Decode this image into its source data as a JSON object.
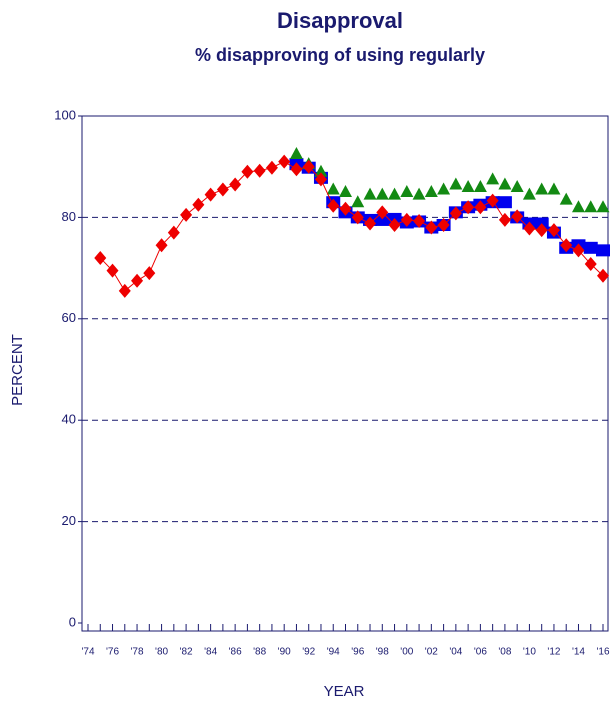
{
  "chart_data": {
    "type": "line",
    "title": "Disapproval",
    "subtitle": "% disapproving of using regularly",
    "y_label": "PERCENT",
    "x_label": "YEAR",
    "categories": [
      "'74",
      null,
      "'76",
      null,
      "'78",
      null,
      "'80",
      null,
      "'82",
      null,
      "'84",
      null,
      "'86",
      null,
      "'88",
      null,
      "'90",
      null,
      "'92",
      null,
      "'94",
      null,
      "'96",
      null,
      "'98",
      null,
      "'00",
      null,
      "'02",
      null,
      "'04",
      null,
      "'06",
      null,
      "'08",
      null,
      "'10",
      null,
      "'12",
      null,
      "'14",
      null,
      "'16"
    ],
    "series": [
      {
        "color": "#0000ee",
        "marker": "square",
        "values": [
          null,
          null,
          null,
          null,
          null,
          null,
          null,
          null,
          null,
          null,
          null,
          null,
          null,
          null,
          null,
          null,
          null,
          90.5,
          89.8,
          87.8,
          83,
          81,
          80,
          79.5,
          79.5,
          79.7,
          79,
          79.2,
          78,
          78.5,
          81,
          82,
          82.5,
          83,
          83,
          80,
          78.8,
          78.8,
          77,
          74,
          74.5,
          74,
          73.5
        ]
      },
      {
        "color": "#138a13",
        "marker": "triangle",
        "values": [
          null,
          null,
          null,
          null,
          null,
          null,
          null,
          null,
          null,
          null,
          null,
          null,
          null,
          null,
          null,
          null,
          null,
          92.5,
          90.5,
          89,
          85.5,
          85,
          83,
          84.5,
          84.5,
          84.5,
          85,
          84.5,
          85,
          85.5,
          86.5,
          86,
          86,
          87.5,
          86.5,
          86,
          84.5,
          85.5,
          85.5,
          83.5,
          82,
          82,
          82
        ]
      },
      {
        "color": "#ee0000",
        "marker": "diamond",
        "line": true,
        "values": [
          null,
          72,
          69.5,
          65.5,
          67.5,
          69,
          74.5,
          77,
          80.5,
          82.5,
          84.5,
          85.5,
          86.5,
          89,
          89.2,
          89.8,
          91,
          89.5,
          90,
          87.5,
          82.3,
          81.7,
          80,
          78.8,
          81,
          78.5,
          79.5,
          79.3,
          78,
          78.5,
          80.8,
          82,
          82,
          83.3,
          79.5,
          80.2,
          77.8,
          77.5,
          77.5,
          74.5,
          73.5,
          70.8,
          68.5
        ]
      }
    ],
    "ylim": [
      0,
      100
    ],
    "yticks": [
      0,
      20,
      40,
      60,
      80,
      100
    ],
    "grid": true
  }
}
